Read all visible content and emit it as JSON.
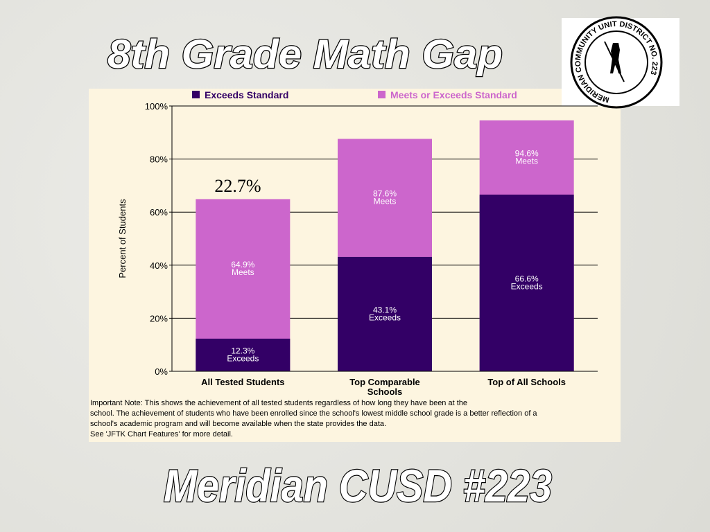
{
  "page_title": "8th Grade Math Gap",
  "footer": "Meridian CUSD #223",
  "logo_text": "MERIDIAN COMMUNITY UNIT DISTRICT NO. 223",
  "chart_data": {
    "type": "bar",
    "ylabel": "Percent of Students",
    "categories": [
      "All Tested Students",
      "Top Comparable Schools",
      "Top of All Schools"
    ],
    "series": [
      {
        "name": "Exceeds Standard",
        "color": "#330066",
        "values": [
          12.3,
          43.1,
          66.6
        ],
        "value_labels": [
          "12.3%",
          "43.1%",
          "66.6%"
        ],
        "value_label_caption": "Exceeds"
      },
      {
        "name": "Meets or Exceeds Standard",
        "color": "#cc66cc",
        "values": [
          64.9,
          87.6,
          94.6
        ],
        "value_labels": [
          "64.9%",
          "87.6%",
          "94.6%"
        ],
        "value_label_caption": "Meets"
      }
    ],
    "ylim": [
      0,
      100
    ],
    "yticks": [
      {
        "value": 0,
        "label": "0%"
      },
      {
        "value": 20,
        "label": "20%"
      },
      {
        "value": 40,
        "label": "40%"
      },
      {
        "value": 60,
        "label": "60%"
      },
      {
        "value": 80,
        "label": "80%"
      },
      {
        "value": 100,
        "label": "100%"
      }
    ],
    "grid": true,
    "annotation": "22.7%",
    "note": [
      "Important Note: This shows the achievement of all tested students regardless of how long they have been at the",
      "school.  The achievement of students who have been enrolled since the school's lowest middle school grade is a better reflection of a",
      "school's academic program and will become available when the state provides the data.",
      "See 'JFTK Chart Features' for more detail."
    ]
  }
}
